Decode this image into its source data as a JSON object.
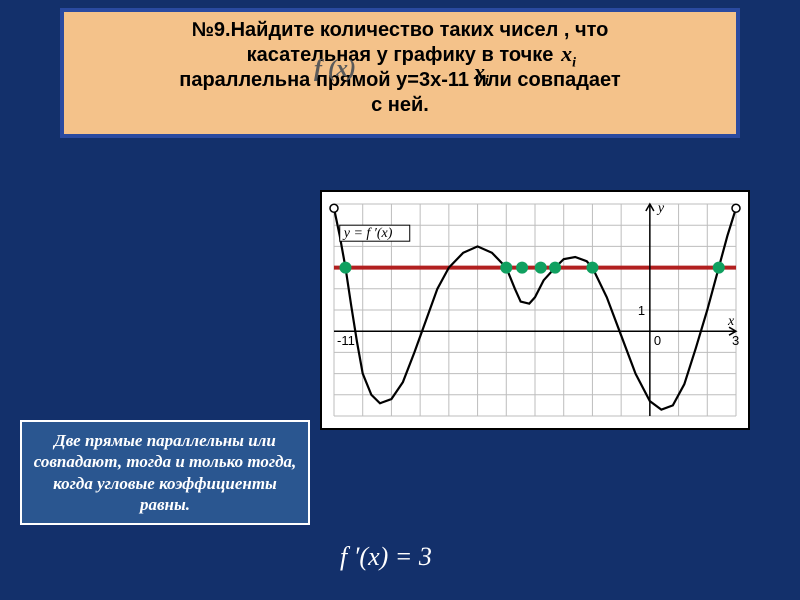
{
  "title": {
    "lines": [
      "№9.Найдите количество таких чисел    , что",
      "касательная у графику     в точке",
      "параллельна прямой у=3x-11 или совпадает",
      "с ней."
    ],
    "xi1": "x",
    "xi1_sub": "i",
    "fx": "f (x)",
    "xi2": "x",
    "xi2_sub": "i",
    "font_size": 20,
    "background": "#f4c28a",
    "border_color": "#2a4aa0"
  },
  "caption": {
    "text": "Две прямые параллельны или совпадают, тогда и только тогда, когда угловые коэффициенты равны.",
    "background": "#2a5690",
    "border_color": "#ffffff",
    "text_color": "#ffffff",
    "font_size": 17
  },
  "formula": {
    "text": "f ′(x) = 3",
    "color": "#ffffff",
    "font_size": 26
  },
  "chart": {
    "type": "line",
    "background": "#ffffff",
    "grid_color": "#bdbdbd",
    "axis_color": "#000000",
    "curve_color": "#000000",
    "red_line_color": "#b22020",
    "dot_color": "#10a060",
    "x_range": [
      -11,
      3
    ],
    "y_range": [
      -4,
      6
    ],
    "x_ticks": [
      -11,
      -10,
      -9,
      -8,
      -7,
      -6,
      -5,
      -4,
      -3,
      -2,
      -1,
      0,
      1,
      2,
      3
    ],
    "y_ticks": [
      -4,
      -3,
      -2,
      -1,
      0,
      1,
      2,
      3,
      4,
      5,
      6
    ],
    "x_label_positions": {
      "-11": "-11",
      "0": "0",
      "3": "3"
    },
    "y_tick_label": "1",
    "axis_label_x": "x",
    "axis_label_y": "y",
    "func_label": "y = f ′(x)",
    "red_line_y": 3,
    "curve_points": [
      [
        -11,
        5.8
      ],
      [
        -10.8,
        4.5
      ],
      [
        -10.6,
        3
      ],
      [
        -10.4,
        1.2
      ],
      [
        -10.2,
        -0.5
      ],
      [
        -10,
        -2
      ],
      [
        -9.7,
        -3
      ],
      [
        -9.4,
        -3.4
      ],
      [
        -9,
        -3.2
      ],
      [
        -8.6,
        -2.4
      ],
      [
        -8.2,
        -1
      ],
      [
        -7.8,
        0.5
      ],
      [
        -7.4,
        2
      ],
      [
        -7,
        3
      ],
      [
        -6.5,
        3.7
      ],
      [
        -6,
        4
      ],
      [
        -5.5,
        3.7
      ],
      [
        -5,
        3
      ],
      [
        -4.7,
        2
      ],
      [
        -4.5,
        1.4
      ],
      [
        -4.2,
        1.3
      ],
      [
        -4,
        1.6
      ],
      [
        -3.7,
        2.4
      ],
      [
        -3.3,
        3
      ],
      [
        -3,
        3.4
      ],
      [
        -2.6,
        3.5
      ],
      [
        -2.2,
        3.3
      ],
      [
        -2,
        3
      ],
      [
        -1.5,
        1.6
      ],
      [
        -1,
        -0.2
      ],
      [
        -0.5,
        -2
      ],
      [
        0,
        -3.3
      ],
      [
        0.4,
        -3.7
      ],
      [
        0.8,
        -3.5
      ],
      [
        1.2,
        -2.5
      ],
      [
        1.6,
        -0.8
      ],
      [
        2,
        1
      ],
      [
        2.4,
        3
      ],
      [
        2.7,
        4.5
      ],
      [
        3,
        5.8
      ]
    ],
    "green_dots_x": [
      -10.6,
      -5,
      -4.45,
      -3.8,
      -3.3,
      -2,
      2.4
    ],
    "open_endpoints": [
      [
        -11,
        5.8
      ],
      [
        3,
        5.8
      ]
    ]
  }
}
